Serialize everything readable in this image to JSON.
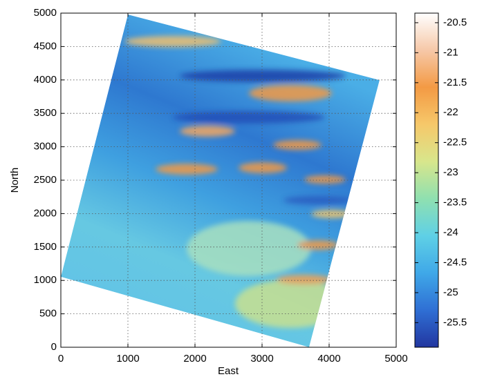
{
  "chart_data": {
    "type": "image",
    "xlabel": "East",
    "ylabel": "North",
    "xlim": [
      0,
      5000
    ],
    "ylim": [
      0,
      5000
    ],
    "xticks": [
      0,
      1000,
      2000,
      3000,
      4000,
      5000
    ],
    "yticks": [
      0,
      500,
      1000,
      1500,
      2000,
      2500,
      3000,
      3500,
      4000,
      4500,
      5000
    ],
    "grid": true,
    "clim": [
      -25.91,
      -20.34
    ],
    "cticks": [
      -25.5,
      -25,
      -24.5,
      -24,
      -23.5,
      -23,
      -22.5,
      -22,
      -21.5,
      -21,
      -20.5
    ],
    "colormap": [
      "#2236a0",
      "#2f6fd4",
      "#3fa8e8",
      "#5fd0e6",
      "#8fe0b0",
      "#d8e68c",
      "#f6c86a",
      "#f39a44",
      "#f6c8a8",
      "#ffffff"
    ]
  }
}
